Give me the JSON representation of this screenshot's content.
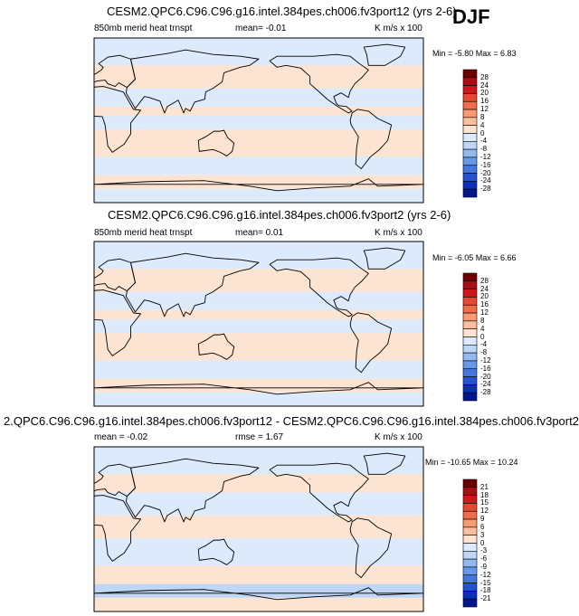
{
  "season": "DJF",
  "panels": [
    {
      "title": "CESM2.QPC6.C96.C96.g16.intel.384pes.ch006.fv3port12 (yrs 2-6)",
      "left_label": "850mb merid heat trnspt",
      "stat_label": "mean=  -0.01",
      "units": "K m/s x 100",
      "minmax": "Min = -5.80 Max =  6.83",
      "colorbar_labels": [
        "28",
        "24",
        "20",
        "16",
        "12",
        "8",
        "4",
        "0",
        "-4",
        "-8",
        "-12",
        "-16",
        "-20",
        "-24",
        "-28"
      ]
    },
    {
      "title": "CESM2.QPC6.C96.C96.g16.intel.384pes.ch006.fv3port2 (yrs 2-6)",
      "left_label": "850mb merid heat trnspt",
      "stat_label": "mean=  0.01",
      "units": "K m/s x 100",
      "minmax": "Min = -6.05 Max =  6.66",
      "colorbar_labels": [
        "28",
        "24",
        "20",
        "16",
        "12",
        "8",
        "4",
        "0",
        "-4",
        "-8",
        "-12",
        "-16",
        "-20",
        "-24",
        "-28"
      ]
    },
    {
      "title": "2.QPC6.C96.C96.g16.intel.384pes.ch006.fv3port12 - CESM2.QPC6.C96.C96.g16.intel.384pes.ch006.fv3port2",
      "left_label": "mean =  -0.02",
      "stat_label": "rmse =   1.67",
      "units": "K m/s x 100",
      "minmax": "Min = -10.65 Max = 10.24",
      "colorbar_labels": [
        "21",
        "18",
        "15",
        "12",
        "9",
        "6",
        "3",
        "0",
        "-3",
        "-6",
        "-9",
        "-12",
        "-15",
        "-18",
        "-21"
      ]
    }
  ],
  "colors": {
    "palette": [
      "#6b0000",
      "#a50f15",
      "#cb181d",
      "#e34a33",
      "#f16c4a",
      "#f89a74",
      "#fbbfa0",
      "#fde4d2",
      "#ddeafb",
      "#bfd6f6",
      "#93b9ef",
      "#6a98e6",
      "#4576dc",
      "#2552cd",
      "#0d2fb8",
      "#05168a"
    ],
    "land": "#000000",
    "background": "#ffffff"
  },
  "chart_data": [
    {
      "type": "heatmap",
      "title": "CESM2.QPC6.C96.C96.g16.intel.384pes.ch006.fv3port12 (yrs 2-6)",
      "variable": "850mb merid heat trnspt",
      "units": "K m/s x 100",
      "mean": -0.01,
      "min": -5.8,
      "max": 6.83,
      "levels": [
        -28,
        -24,
        -20,
        -16,
        -12,
        -8,
        -4,
        0,
        4,
        8,
        12,
        16,
        20,
        24,
        28
      ],
      "xlim": [
        0,
        360
      ],
      "ylim": [
        -90,
        90
      ],
      "zonal_bands": [
        {
          "lat": [
            60,
            90
          ],
          "value": -1
        },
        {
          "lat": [
            35,
            60
          ],
          "value": 1
        },
        {
          "lat": [
            15,
            35
          ],
          "value": -1.5
        },
        {
          "lat": [
            5,
            15
          ],
          "value": 1
        },
        {
          "lat": [
            -10,
            5
          ],
          "value": -1
        },
        {
          "lat": [
            -40,
            -10
          ],
          "value": 1.5
        },
        {
          "lat": [
            -60,
            -40
          ],
          "value": -2.5
        },
        {
          "lat": [
            -75,
            -60
          ],
          "value": 1
        },
        {
          "lat": [
            -90,
            -75
          ],
          "value": -1
        }
      ]
    },
    {
      "type": "heatmap",
      "title": "CESM2.QPC6.C96.C96.g16.intel.384pes.ch006.fv3port2 (yrs 2-6)",
      "variable": "850mb merid heat trnspt",
      "units": "K m/s x 100",
      "mean": 0.01,
      "min": -6.05,
      "max": 6.66,
      "levels": [
        -28,
        -24,
        -20,
        -16,
        -12,
        -8,
        -4,
        0,
        4,
        8,
        12,
        16,
        20,
        24,
        28
      ],
      "xlim": [
        0,
        360
      ],
      "ylim": [
        -90,
        90
      ],
      "zonal_bands": [
        {
          "lat": [
            60,
            90
          ],
          "value": -1
        },
        {
          "lat": [
            35,
            60
          ],
          "value": 1.5
        },
        {
          "lat": [
            15,
            35
          ],
          "value": -1.5
        },
        {
          "lat": [
            5,
            15
          ],
          "value": 1
        },
        {
          "lat": [
            -10,
            5
          ],
          "value": -1
        },
        {
          "lat": [
            -40,
            -10
          ],
          "value": 1.5
        },
        {
          "lat": [
            -60,
            -40
          ],
          "value": -2.5
        },
        {
          "lat": [
            -75,
            -60
          ],
          "value": 2
        },
        {
          "lat": [
            -90,
            -75
          ],
          "value": -1
        }
      ]
    },
    {
      "type": "heatmap",
      "title": "2.QPC6.C96.C96.g16.intel.384pes.ch006.fv3port12 - CESM2.QPC6.C96.C96.g16.intel.384pes.ch006.fv3port2",
      "units": "K m/s x 100",
      "mean": -0.02,
      "rmse": 1.67,
      "min": -10.65,
      "max": 10.24,
      "levels": [
        -21,
        -18,
        -15,
        -12,
        -9,
        -6,
        -3,
        0,
        3,
        6,
        9,
        12,
        15,
        18,
        21
      ],
      "xlim": [
        0,
        360
      ],
      "ylim": [
        -90,
        90
      ],
      "zonal_bands": [
        {
          "lat": [
            60,
            90
          ],
          "value": -1
        },
        {
          "lat": [
            40,
            60
          ],
          "value": 1
        },
        {
          "lat": [
            15,
            40
          ],
          "value": -1
        },
        {
          "lat": [
            -10,
            15
          ],
          "value": 1
        },
        {
          "lat": [
            -40,
            -10
          ],
          "value": -1
        },
        {
          "lat": [
            -60,
            -40
          ],
          "value": 1
        },
        {
          "lat": [
            -75,
            -60
          ],
          "value": -4
        },
        {
          "lat": [
            -90,
            -75
          ],
          "value": 2
        }
      ]
    }
  ]
}
